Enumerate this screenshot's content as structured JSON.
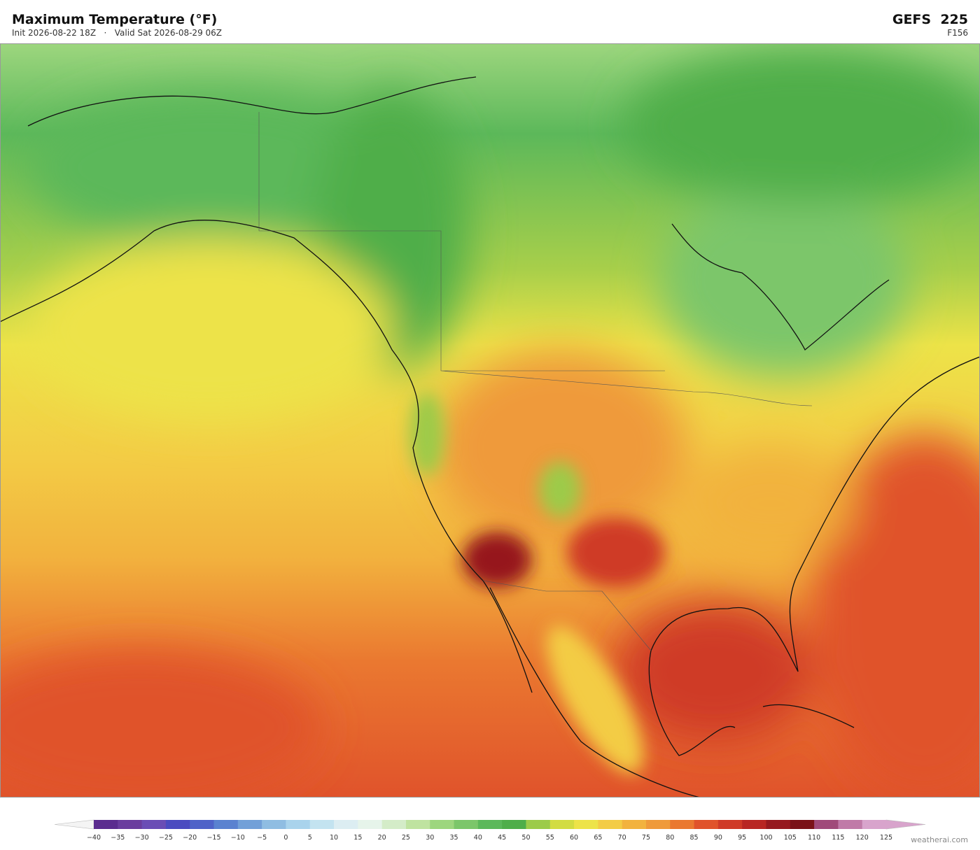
{
  "header": {
    "title": "Maximum Temperature  (°F)",
    "subtitle": "Init 2026-08-22 18Z   ·   Valid Sat 2026-08-29 06Z",
    "model": "GEFS  225",
    "forecast_hour": "F156"
  },
  "colorbar": {
    "ticks": [
      "−40",
      "−35",
      "−30",
      "−25",
      "−20",
      "−15",
      "−10",
      "−5",
      "0",
      "5",
      "10",
      "15",
      "20",
      "25",
      "30",
      "35",
      "40",
      "45",
      "50",
      "55",
      "60",
      "65",
      "70",
      "75",
      "80",
      "85",
      "90",
      "95",
      "100",
      "105",
      "110",
      "115",
      "120",
      "125"
    ],
    "colors": [
      "#5b2c8f",
      "#6a3d9e",
      "#6a4db5",
      "#4b4bc0",
      "#4f63c8",
      "#5a82d0",
      "#72a0d8",
      "#8fbde2",
      "#a9d3ec",
      "#c3e3f0",
      "#dcedf2",
      "#e6f4ea",
      "#d4ecc8",
      "#bfe3a0",
      "#9dd67e",
      "#7cc66a",
      "#5cb85a",
      "#4fae4a",
      "#9ccb4a",
      "#d2dc42",
      "#ede348",
      "#f3cc45",
      "#f2b23e",
      "#ef9a3a",
      "#ea7830",
      "#e0532b",
      "#cf3a27",
      "#b82623",
      "#96191f",
      "#7a1218",
      "#a04a7a",
      "#c07aa8",
      "#d8a4cc"
    ]
  },
  "footer": {
    "credit": "weatherai.com"
  }
}
